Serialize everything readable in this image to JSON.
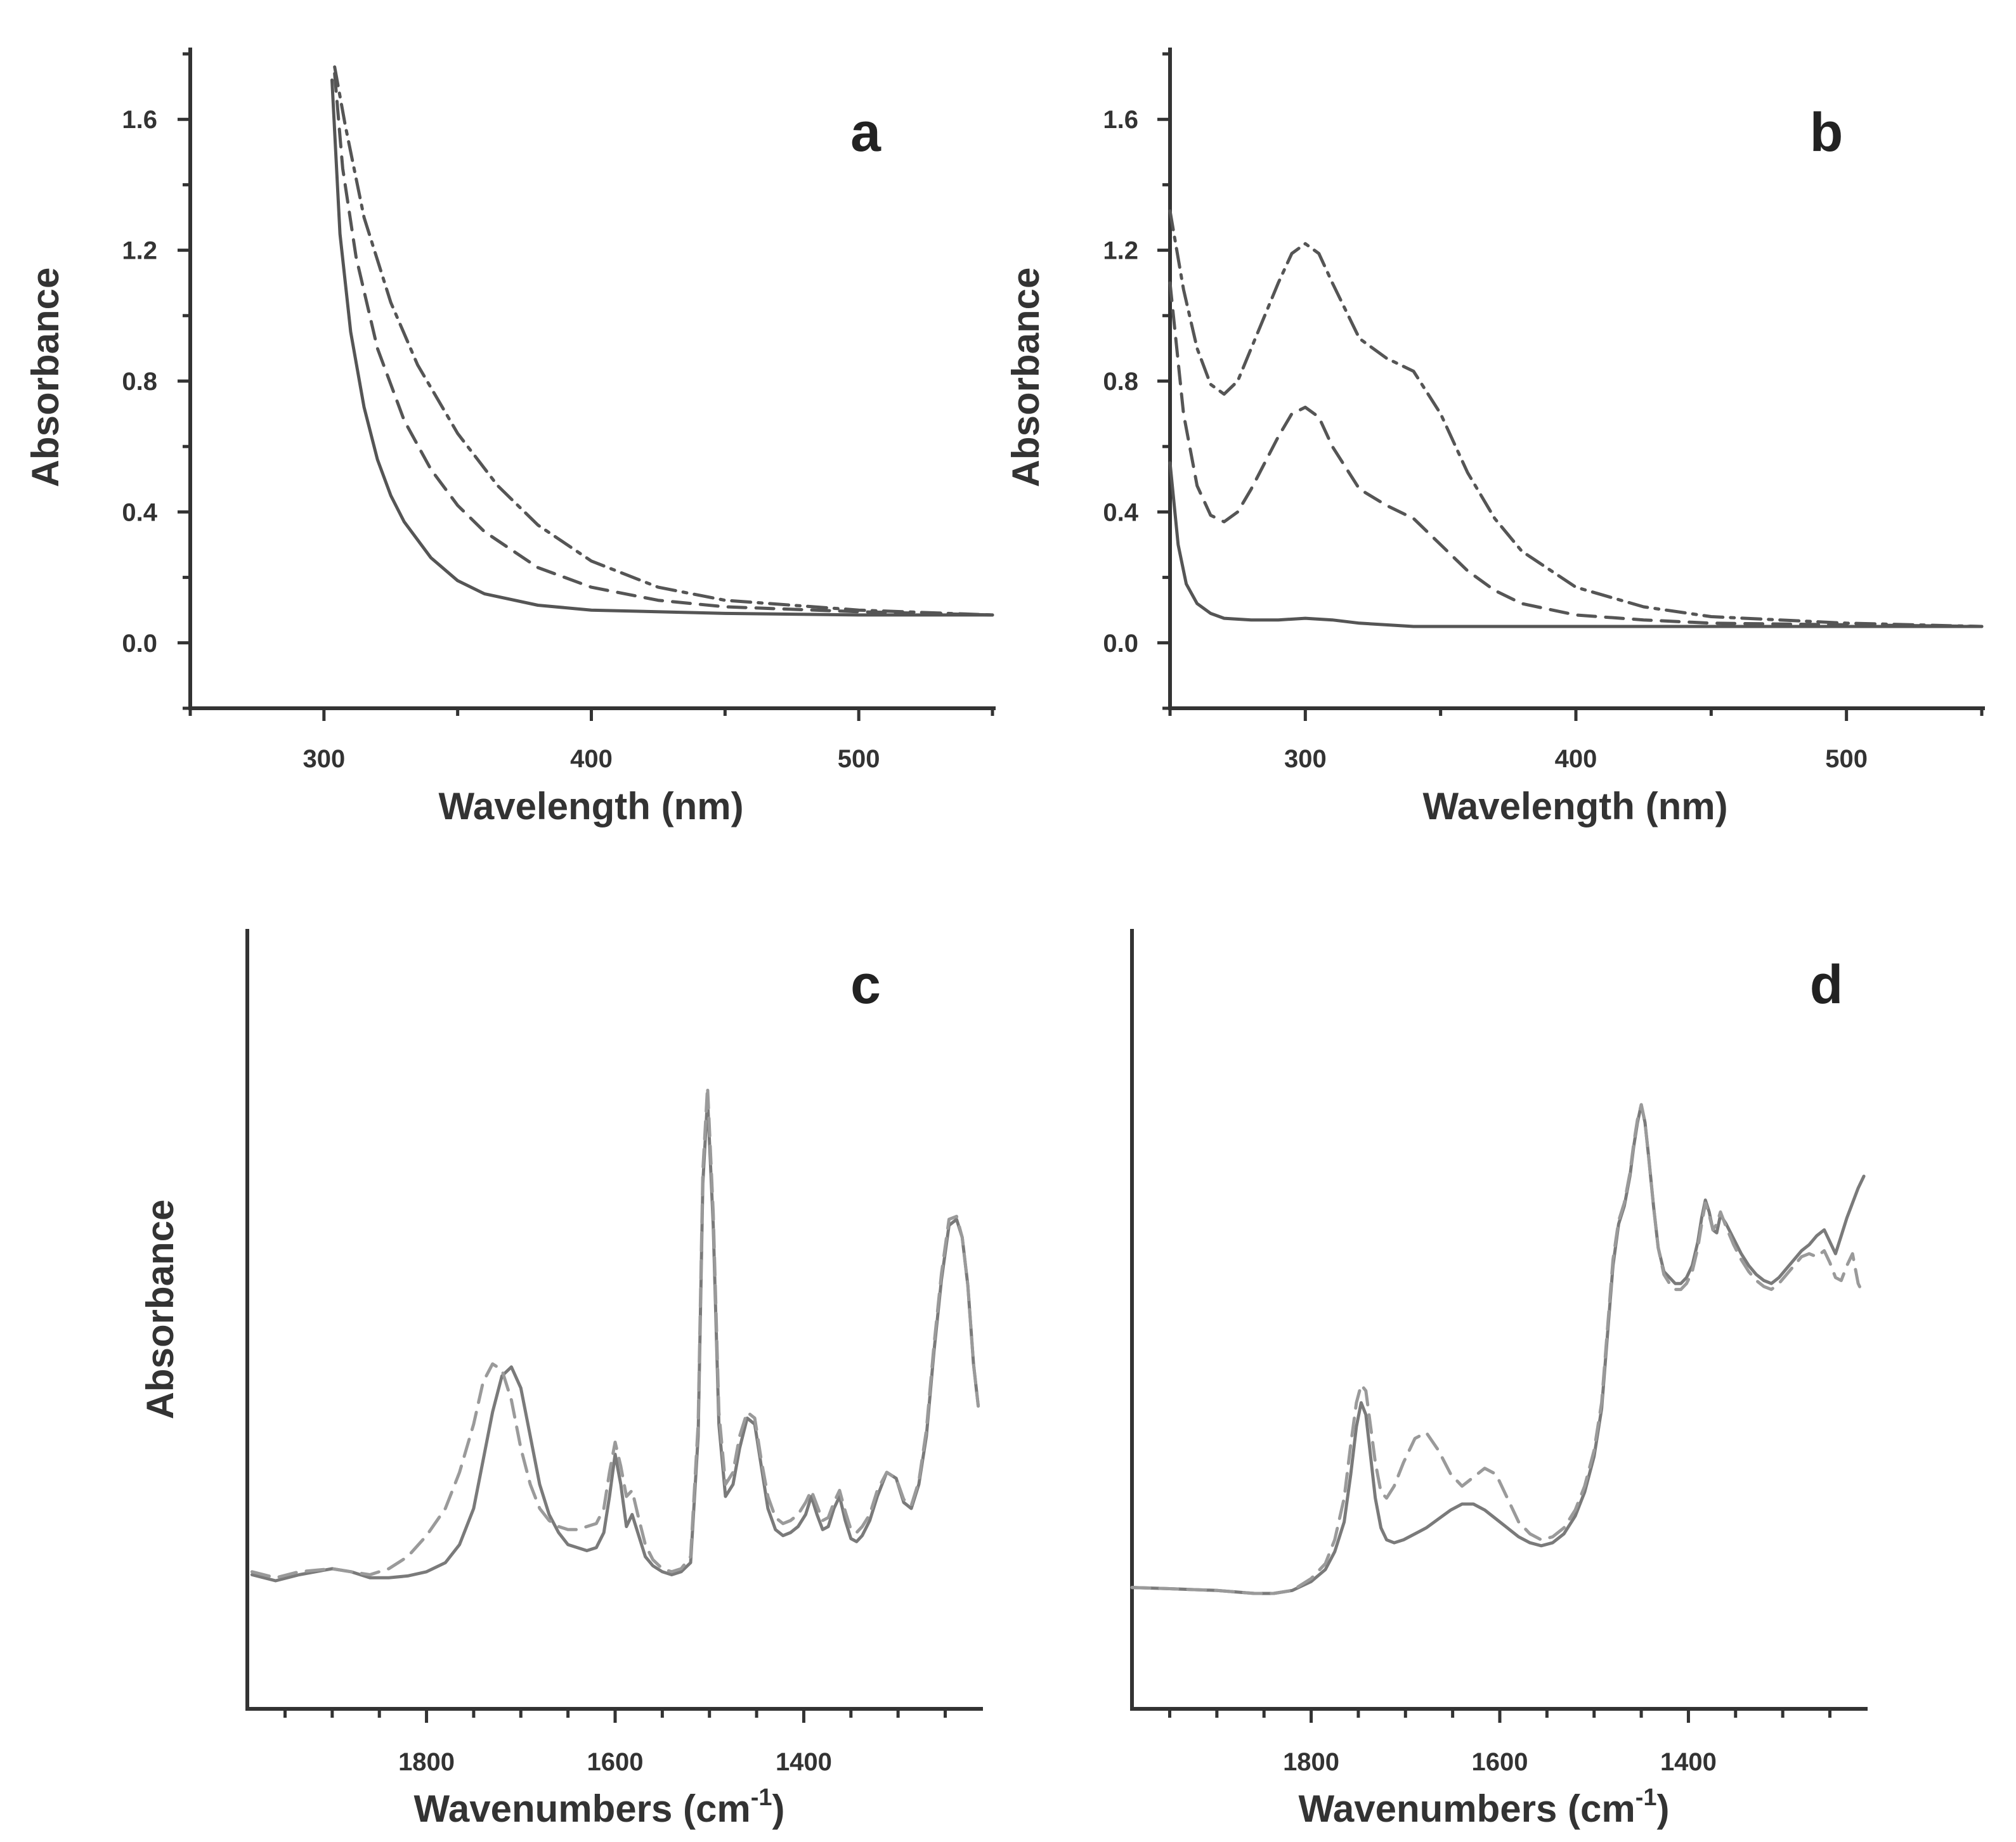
{
  "chart_data": [
    {
      "panel": "a",
      "type": "line",
      "xlabel": "Wavelength (nm)",
      "ylabel": "Absorbance",
      "xlim": [
        250,
        550
      ],
      "ylim": [
        -0.2,
        1.8
      ],
      "xticks": [
        300,
        400,
        500
      ],
      "xtick_labels": [
        "300",
        "400",
        "500"
      ],
      "yticks": [
        0.0,
        0.4,
        0.8,
        1.2,
        1.6
      ],
      "ytick_labels": [
        "0.0",
        "0.4",
        "0.8",
        "1.2",
        "1.6"
      ],
      "series": [
        {
          "name": "solid",
          "style": "solid",
          "color": "#555555",
          "x": [
            303,
            306,
            310,
            315,
            320,
            325,
            330,
            340,
            350,
            360,
            380,
            400,
            450,
            500,
            550
          ],
          "y": [
            1.72,
            1.25,
            0.95,
            0.72,
            0.56,
            0.45,
            0.37,
            0.26,
            0.19,
            0.15,
            0.115,
            0.1,
            0.09,
            0.085,
            0.085
          ]
        },
        {
          "name": "dashed",
          "style": "dashed",
          "color": "#555555",
          "x": [
            304,
            307,
            312,
            320,
            330,
            340,
            350,
            360,
            380,
            400,
            425,
            450,
            500,
            550
          ],
          "y": [
            1.74,
            1.45,
            1.18,
            0.9,
            0.68,
            0.53,
            0.42,
            0.34,
            0.23,
            0.17,
            0.13,
            0.11,
            0.095,
            0.085
          ]
        },
        {
          "name": "dash-dot",
          "style": "dashdot",
          "color": "#555555",
          "x": [
            304,
            308,
            315,
            325,
            335,
            350,
            365,
            380,
            400,
            425,
            450,
            500,
            550
          ],
          "y": [
            1.76,
            1.58,
            1.3,
            1.04,
            0.85,
            0.64,
            0.48,
            0.36,
            0.25,
            0.17,
            0.13,
            0.1,
            0.085
          ]
        }
      ],
      "annotations": [
        "a"
      ]
    },
    {
      "panel": "b",
      "type": "line",
      "xlabel": "Wavelength (nm)",
      "ylabel": "Absorbance",
      "xlim": [
        250,
        550
      ],
      "ylim": [
        -0.2,
        1.8
      ],
      "xticks": [
        300,
        400,
        500
      ],
      "xtick_labels": [
        "300",
        "400",
        "500"
      ],
      "yticks": [
        0.0,
        0.4,
        0.8,
        1.2,
        1.6
      ],
      "ytick_labels": [
        "0.0",
        "0.4",
        "0.8",
        "1.2",
        "1.6"
      ],
      "series": [
        {
          "name": "solid",
          "style": "solid",
          "color": "#555555",
          "x": [
            250,
            253,
            256,
            260,
            265,
            270,
            280,
            290,
            300,
            310,
            320,
            340,
            400,
            450,
            500,
            550
          ],
          "y": [
            0.55,
            0.3,
            0.18,
            0.12,
            0.09,
            0.075,
            0.07,
            0.07,
            0.075,
            0.07,
            0.06,
            0.05,
            0.05,
            0.05,
            0.05,
            0.05
          ]
        },
        {
          "name": "dashed",
          "style": "dashed",
          "color": "#555555",
          "x": [
            250,
            255,
            260,
            265,
            270,
            275,
            280,
            290,
            295,
            300,
            305,
            310,
            320,
            330,
            340,
            350,
            360,
            370,
            380,
            400,
            425,
            450,
            500,
            550
          ],
          "y": [
            1.1,
            0.7,
            0.48,
            0.39,
            0.37,
            0.4,
            0.47,
            0.63,
            0.7,
            0.72,
            0.69,
            0.6,
            0.47,
            0.42,
            0.38,
            0.3,
            0.22,
            0.16,
            0.12,
            0.085,
            0.07,
            0.06,
            0.055,
            0.05
          ]
        },
        {
          "name": "dash-dot",
          "style": "dashdot",
          "color": "#555555",
          "x": [
            250,
            255,
            260,
            265,
            270,
            275,
            280,
            290,
            295,
            300,
            305,
            310,
            320,
            330,
            340,
            350,
            360,
            370,
            380,
            400,
            425,
            450,
            500,
            550
          ],
          "y": [
            1.32,
            1.08,
            0.9,
            0.79,
            0.76,
            0.8,
            0.9,
            1.1,
            1.19,
            1.22,
            1.19,
            1.1,
            0.93,
            0.87,
            0.83,
            0.7,
            0.52,
            0.38,
            0.28,
            0.17,
            0.11,
            0.08,
            0.06,
            0.05
          ]
        }
      ],
      "annotations": [
        "b"
      ]
    },
    {
      "panel": "c",
      "type": "line",
      "xlabel": "Wavenumbers (cm",
      "xlabel_superscript": "-1",
      "xlabel_close": ")",
      "ylabel": "Absorbance",
      "xlim": [
        1990,
        1210
      ],
      "ylim": [
        0,
        100
      ],
      "xticks": [
        1800,
        1600,
        1400
      ],
      "xtick_labels": [
        "1800",
        "1600",
        "1400"
      ],
      "series": [
        {
          "name": "solid",
          "style": "solid",
          "color": "#7a7a7a",
          "x": [
            1985,
            1960,
            1935,
            1900,
            1880,
            1860,
            1840,
            1820,
            1800,
            1780,
            1765,
            1750,
            1740,
            1730,
            1720,
            1710,
            1700,
            1690,
            1680,
            1670,
            1660,
            1650,
            1640,
            1630,
            1620,
            1612,
            1606,
            1600,
            1594,
            1588,
            1582,
            1576,
            1568,
            1560,
            1550,
            1540,
            1530,
            1520,
            1512,
            1507,
            1502,
            1496,
            1490,
            1483,
            1475,
            1468,
            1460,
            1452,
            1445,
            1438,
            1430,
            1422,
            1414,
            1406,
            1398,
            1392,
            1386,
            1380,
            1374,
            1368,
            1362,
            1356,
            1350,
            1344,
            1338,
            1330,
            1322,
            1312,
            1302,
            1294,
            1286,
            1278,
            1270,
            1262,
            1254,
            1246,
            1238,
            1232,
            1226,
            1220,
            1215
          ],
          "y": [
            7.0,
            6.0,
            7.0,
            8.0,
            7.5,
            6.5,
            6.5,
            6.8,
            7.5,
            9.0,
            12.0,
            18.0,
            26.0,
            34.0,
            40.0,
            41.5,
            38.0,
            30.0,
            22.0,
            17.0,
            14.0,
            12.0,
            11.5,
            11.0,
            11.5,
            14.0,
            20.0,
            27.0,
            22.0,
            15.0,
            17.0,
            14.0,
            10.0,
            8.5,
            7.5,
            7.0,
            7.5,
            9.0,
            30.0,
            72.0,
            86.0,
            65.0,
            32.0,
            20.0,
            22.0,
            28.0,
            33.0,
            32.0,
            25.0,
            18.0,
            14.5,
            13.5,
            14.0,
            15.0,
            17.0,
            20.0,
            17.0,
            14.5,
            15.0,
            18.0,
            20.0,
            16.0,
            13.0,
            12.5,
            13.5,
            16.0,
            20.0,
            24.0,
            23.0,
            19.0,
            18.0,
            22.0,
            30.0,
            44.0,
            56.0,
            65.0,
            66.0,
            63.0,
            55.0,
            42.0,
            35.0
          ]
        },
        {
          "name": "dashed",
          "style": "dashed",
          "color": "#9a9a9a",
          "x": [
            1985,
            1960,
            1935,
            1900,
            1880,
            1860,
            1840,
            1820,
            1800,
            1780,
            1765,
            1750,
            1740,
            1730,
            1720,
            1710,
            1700,
            1690,
            1680,
            1670,
            1660,
            1650,
            1640,
            1630,
            1620,
            1612,
            1606,
            1600,
            1594,
            1588,
            1582,
            1576,
            1568,
            1560,
            1550,
            1540,
            1530,
            1520,
            1512,
            1507,
            1502,
            1496,
            1490,
            1483,
            1475,
            1468,
            1460,
            1452,
            1445,
            1438,
            1430,
            1422,
            1414,
            1406,
            1398,
            1392,
            1386,
            1380,
            1374,
            1368,
            1362,
            1356,
            1350,
            1344,
            1338,
            1330,
            1322,
            1312,
            1302,
            1294,
            1286,
            1278,
            1270,
            1262,
            1254,
            1246,
            1238,
            1232,
            1226,
            1220,
            1215
          ],
          "y": [
            7.5,
            6.5,
            7.5,
            8.0,
            7.5,
            7.0,
            8.0,
            10.0,
            13.5,
            18.0,
            24.0,
            32.0,
            39.0,
            42.0,
            41.0,
            36.0,
            28.0,
            22.0,
            18.0,
            16.0,
            15.0,
            14.5,
            14.5,
            15.0,
            15.5,
            18.0,
            24.0,
            29.0,
            25.0,
            20.0,
            21.0,
            17.0,
            12.0,
            9.5,
            8.0,
            7.5,
            8.0,
            10.0,
            32.0,
            74.0,
            88.0,
            67.0,
            34.0,
            22.0,
            24.0,
            30.0,
            34.0,
            33.0,
            26.0,
            20.0,
            16.5,
            15.5,
            16.0,
            17.0,
            19.0,
            21.0,
            18.5,
            16.0,
            16.5,
            19.0,
            21.0,
            17.5,
            14.5,
            14.0,
            15.0,
            17.0,
            21.0,
            24.0,
            23.0,
            19.5,
            18.5,
            22.5,
            31.0,
            45.0,
            57.0,
            66.0,
            66.5,
            63.0,
            55.0,
            42.0,
            35.0
          ]
        }
      ],
      "annotations": [
        "c"
      ]
    },
    {
      "panel": "d",
      "type": "line",
      "xlabel": "Wavenumbers (cm",
      "xlabel_superscript": "-1",
      "xlabel_close": ")",
      "xlim": [
        1990,
        1210
      ],
      "ylim": [
        0,
        100
      ],
      "xticks": [
        1800,
        1600,
        1400
      ],
      "xtick_labels": [
        "1800",
        "1600",
        "1400"
      ],
      "series": [
        {
          "name": "solid",
          "style": "solid",
          "color": "#7a7a7a",
          "x": [
            1990,
            1950,
            1900,
            1860,
            1840,
            1820,
            1800,
            1785,
            1775,
            1765,
            1758,
            1752,
            1747,
            1742,
            1737,
            1732,
            1726,
            1720,
            1712,
            1702,
            1690,
            1678,
            1665,
            1652,
            1640,
            1628,
            1616,
            1604,
            1592,
            1580,
            1568,
            1556,
            1544,
            1532,
            1520,
            1510,
            1500,
            1492,
            1486,
            1480,
            1474,
            1468,
            1462,
            1458,
            1454,
            1450,
            1446,
            1442,
            1437,
            1432,
            1426,
            1420,
            1414,
            1408,
            1402,
            1396,
            1390,
            1386,
            1382,
            1378,
            1374,
            1370,
            1366,
            1360,
            1352,
            1344,
            1336,
            1328,
            1320,
            1312,
            1304,
            1296,
            1288,
            1280,
            1272,
            1264,
            1256,
            1250,
            1244,
            1238,
            1232,
            1226,
            1220,
            1214
          ],
          "y": [
            6.0,
            5.8,
            5.5,
            5.0,
            5.0,
            5.5,
            7.0,
            9.0,
            12.0,
            17.0,
            25.0,
            33.0,
            37.0,
            35.0,
            28.0,
            21.0,
            16.0,
            14.0,
            13.5,
            14.0,
            15.0,
            16.0,
            17.5,
            19.0,
            20.0,
            20.0,
            19.0,
            17.5,
            16.0,
            14.5,
            13.5,
            13.0,
            13.5,
            15.0,
            18.0,
            22.0,
            28.0,
            36.0,
            48.0,
            60.0,
            67.0,
            70.0,
            75.0,
            80.0,
            84.0,
            87.0,
            84.0,
            78.0,
            70.0,
            63.0,
            59.0,
            58.0,
            57.0,
            57.0,
            58.0,
            60.0,
            64.0,
            68.0,
            71.0,
            69.0,
            66.0,
            65.5,
            68.5,
            67.0,
            64.5,
            62.0,
            60.0,
            58.5,
            57.5,
            57.0,
            58.0,
            59.5,
            61.0,
            62.5,
            63.5,
            65.0,
            66.0,
            64.0,
            62.0,
            65.0,
            68.0,
            70.5,
            73.0,
            75.0
          ]
        },
        {
          "name": "dashed",
          "style": "dashed",
          "color": "#9a9a9a",
          "x": [
            1990,
            1950,
            1900,
            1860,
            1840,
            1820,
            1800,
            1785,
            1775,
            1765,
            1758,
            1752,
            1747,
            1742,
            1737,
            1732,
            1726,
            1720,
            1712,
            1702,
            1690,
            1678,
            1665,
            1652,
            1640,
            1628,
            1616,
            1604,
            1592,
            1580,
            1568,
            1556,
            1544,
            1532,
            1520,
            1510,
            1500,
            1492,
            1486,
            1480,
            1474,
            1468,
            1462,
            1458,
            1454,
            1450,
            1446,
            1442,
            1437,
            1432,
            1426,
            1420,
            1414,
            1408,
            1402,
            1396,
            1390,
            1386,
            1382,
            1378,
            1374,
            1370,
            1366,
            1360,
            1352,
            1344,
            1336,
            1328,
            1320,
            1312,
            1304,
            1296,
            1288,
            1280,
            1272,
            1264,
            1256,
            1250,
            1244,
            1238,
            1232,
            1226,
            1220,
            1214
          ],
          "y": [
            6.0,
            5.8,
            5.5,
            5.0,
            5.0,
            5.5,
            7.5,
            10.0,
            14.0,
            21.0,
            30.0,
            37.0,
            40.0,
            39.0,
            33.0,
            27.0,
            22.0,
            21.0,
            23.0,
            27.0,
            31.0,
            32.0,
            29.0,
            25.0,
            23.0,
            24.5,
            26.0,
            25.0,
            21.0,
            17.0,
            15.0,
            14.0,
            14.5,
            16.0,
            19.0,
            23.0,
            29.0,
            37.0,
            49.0,
            61.0,
            67.5,
            70.5,
            75.5,
            80.5,
            84.5,
            87.0,
            84.0,
            78.0,
            70.0,
            63.0,
            58.5,
            57.0,
            56.0,
            56.0,
            57.0,
            59.0,
            63.0,
            67.0,
            70.5,
            68.5,
            66.0,
            67.0,
            69.0,
            66.5,
            63.5,
            61.0,
            59.0,
            57.5,
            56.5,
            56.0,
            57.0,
            58.5,
            60.0,
            61.5,
            62.0,
            61.5,
            62.5,
            60.5,
            58.0,
            57.5,
            60.0,
            62.0,
            57.0,
            55.0
          ]
        }
      ],
      "annotations": [
        "d"
      ]
    }
  ]
}
